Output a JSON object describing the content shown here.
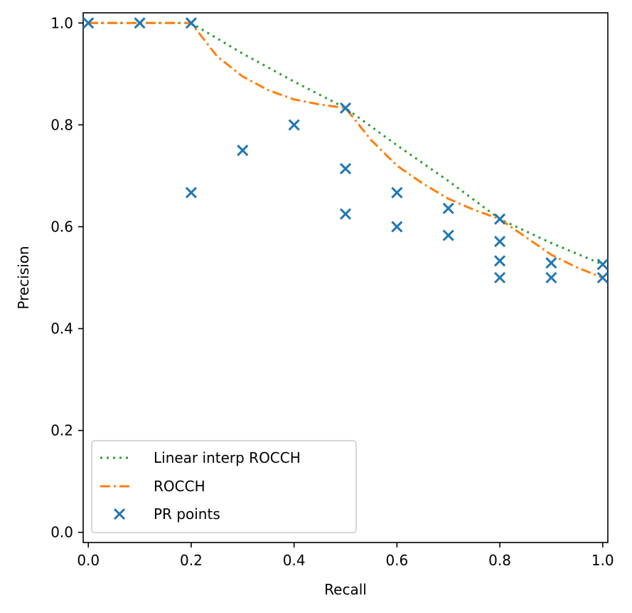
{
  "chart_data": {
    "type": "line",
    "xlabel": "Recall",
    "ylabel": "Precision",
    "xlim": [
      -0.01,
      1.01
    ],
    "ylim": [
      -0.02,
      1.02
    ],
    "xticks": [
      0.0,
      0.2,
      0.4,
      0.6,
      0.8,
      1.0
    ],
    "xtick_labels": [
      "0.0",
      "0.2",
      "0.4",
      "0.6",
      "0.8",
      "1.0"
    ],
    "yticks": [
      0.0,
      0.2,
      0.4,
      0.6,
      0.8,
      1.0
    ],
    "ytick_labels": [
      "0.0",
      "0.2",
      "0.4",
      "0.6",
      "0.8",
      "1.0"
    ],
    "grid": false,
    "legend_position": "lower-left",
    "series": [
      {
        "name": "Linear interp ROCCH",
        "kind": "line",
        "style": "dotted",
        "color": "#2ca02c",
        "x": [
          0.0,
          0.1,
          0.2,
          0.3,
          0.4,
          0.5,
          0.6,
          0.7,
          0.8,
          0.9,
          1.0
        ],
        "y": [
          1.0,
          1.0,
          1.0,
          0.94,
          0.885,
          0.833,
          0.76,
          0.69,
          0.615,
          0.568,
          0.526
        ]
      },
      {
        "name": "ROCCH",
        "kind": "line",
        "style": "dashdot",
        "color": "#ff7f0e",
        "x": [
          0.0,
          0.1,
          0.2,
          0.25,
          0.3,
          0.35,
          0.4,
          0.45,
          0.5,
          0.55,
          0.6,
          0.65,
          0.7,
          0.75,
          0.8,
          0.85,
          0.9,
          0.95,
          1.0
        ],
        "y": [
          1.0,
          1.0,
          1.0,
          0.935,
          0.895,
          0.868,
          0.85,
          0.84,
          0.833,
          0.77,
          0.72,
          0.685,
          0.655,
          0.633,
          0.615,
          0.58,
          0.545,
          0.52,
          0.5
        ]
      },
      {
        "name": "PR points",
        "kind": "scatter",
        "marker": "x",
        "color": "#1f77b4",
        "x": [
          0.0,
          0.1,
          0.2,
          0.2,
          0.3,
          0.4,
          0.5,
          0.5,
          0.5,
          0.6,
          0.6,
          0.7,
          0.7,
          0.8,
          0.8,
          0.8,
          0.8,
          0.9,
          0.9,
          1.0,
          1.0
        ],
        "y": [
          1.0,
          1.0,
          1.0,
          0.667,
          0.75,
          0.8,
          0.833,
          0.714,
          0.625,
          0.667,
          0.6,
          0.636,
          0.583,
          0.615,
          0.571,
          0.533,
          0.5,
          0.529,
          0.5,
          0.526,
          0.5
        ]
      }
    ]
  }
}
